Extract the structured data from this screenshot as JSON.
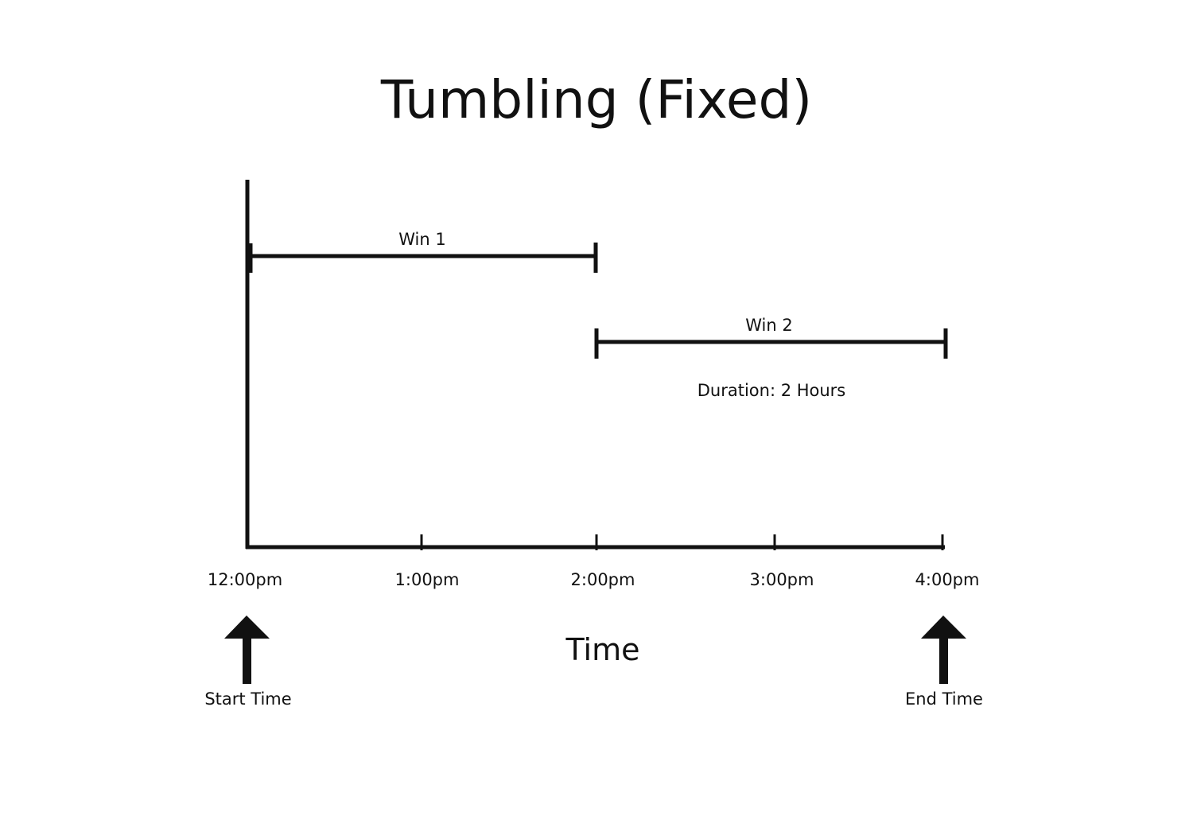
{
  "diagram": {
    "title": "Tumbling (Fixed)",
    "axis_title": "Time",
    "ticks": [
      "12:00pm",
      "1:00pm",
      "2:00pm",
      "3:00pm",
      "4:00pm"
    ],
    "windows": [
      {
        "label": "Win 1",
        "start": "12:00pm",
        "end": "2:00pm"
      },
      {
        "label": "Win 2",
        "start": "2:00pm",
        "end": "4:00pm"
      }
    ],
    "duration_label": "Duration: 2 Hours",
    "markers": {
      "start": {
        "label": "Start Time",
        "at": "12:00pm"
      },
      "end": {
        "label": "End Time",
        "at": "4:00pm"
      }
    }
  }
}
